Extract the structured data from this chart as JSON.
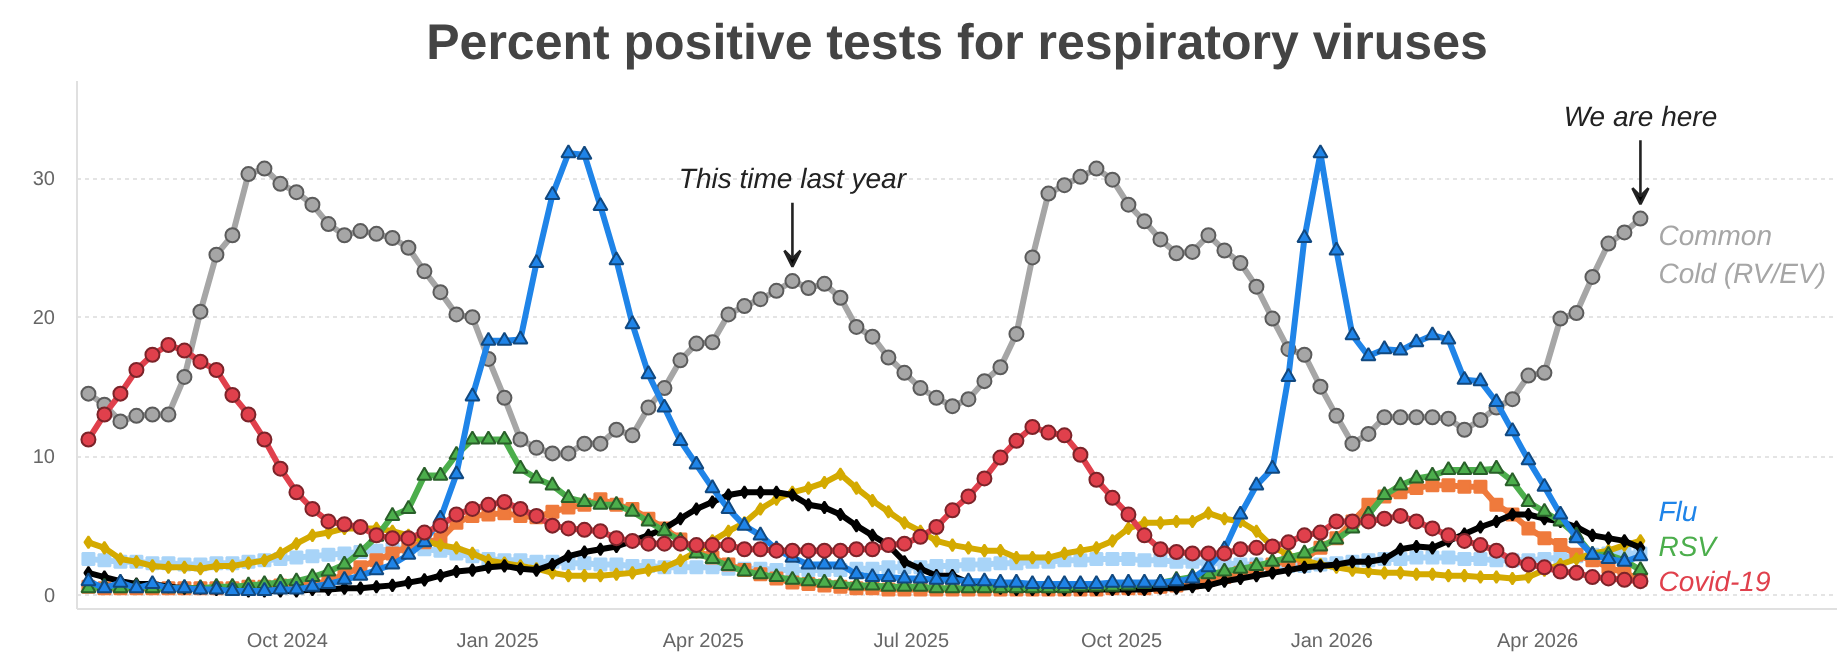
{
  "chart_data": {
    "type": "line",
    "title": "Percent positive tests for respiratory viruses",
    "x": [
      "2024-07-06",
      "2024-07-13",
      "2024-07-20",
      "2024-07-27",
      "2024-08-03",
      "2024-08-10",
      "2024-08-17",
      "2024-08-24",
      "2024-08-31",
      "2024-09-07",
      "2024-09-14",
      "2024-09-21",
      "2024-09-28",
      "2024-10-05",
      "2024-10-12",
      "2024-10-19",
      "2024-10-26",
      "2024-11-02",
      "2024-11-09",
      "2024-11-16",
      "2024-11-23",
      "2024-11-30",
      "2024-12-07",
      "2024-12-14",
      "2024-12-21",
      "2024-12-28",
      "2025-01-04",
      "2025-01-11",
      "2025-01-18",
      "2025-01-25",
      "2025-02-01",
      "2025-02-08",
      "2025-02-15",
      "2025-02-22",
      "2025-03-01",
      "2025-03-08",
      "2025-03-15",
      "2025-03-22",
      "2025-03-29",
      "2025-04-05",
      "2025-04-12",
      "2025-04-19",
      "2025-04-26",
      "2025-05-03",
      "2025-05-10",
      "2025-05-17",
      "2025-05-24",
      "2025-05-31",
      "2025-06-07",
      "2025-06-14",
      "2025-06-21",
      "2025-06-28",
      "2025-07-05",
      "2025-07-12",
      "2025-07-19",
      "2025-07-26",
      "2025-08-02",
      "2025-08-09",
      "2025-08-16",
      "2025-08-23",
      "2025-08-30",
      "2025-09-06",
      "2025-09-13",
      "2025-09-20",
      "2025-09-27",
      "2025-10-04",
      "2025-10-11",
      "2025-10-18",
      "2025-10-25",
      "2025-11-01",
      "2025-11-08",
      "2025-11-15",
      "2025-11-22",
      "2025-11-29",
      "2025-12-06",
      "2025-12-13",
      "2025-12-20",
      "2025-12-27",
      "2026-01-03",
      "2026-01-10",
      "2026-01-17",
      "2026-01-24",
      "2026-01-31",
      "2026-02-07",
      "2026-02-14",
      "2026-02-21",
      "2026-02-28",
      "2026-03-07",
      "2026-03-14",
      "2026-03-21",
      "2026-03-28",
      "2026-04-04",
      "2026-04-11",
      "2026-04-18",
      "2026-04-25",
      "2026-05-02",
      "2026-05-09",
      "2026-05-16"
    ],
    "series": [
      {
        "color": "#a8d4f8",
        "marker": "square",
        "values": [
          2.6,
          2.5,
          2.4,
          2.4,
          2.3,
          2.3,
          2.2,
          2.2,
          2.3,
          2.3,
          2.4,
          2.5,
          2.6,
          2.7,
          2.8,
          2.9,
          3.0,
          3.1,
          3.2,
          3.3,
          3.4,
          3.3,
          3.2,
          3.0,
          2.8,
          2.6,
          2.5,
          2.5,
          2.4,
          2.4,
          2.3,
          2.3,
          2.2,
          2.2,
          2.1,
          2.1,
          2.0,
          2.0,
          2.0,
          2.0,
          1.9,
          1.9,
          1.9,
          1.8,
          1.8,
          1.8,
          1.8,
          1.8,
          1.9,
          1.9,
          2.0,
          2.0,
          2.0,
          2.1,
          2.1,
          2.2,
          2.2,
          2.3,
          2.3,
          2.4,
          2.4,
          2.5,
          2.5,
          2.6,
          2.6,
          2.6,
          2.5,
          2.5,
          2.4,
          2.4,
          2.3,
          2.3,
          2.2,
          2.2,
          2.1,
          2.1,
          2.1,
          2.2,
          2.3,
          2.4,
          2.5,
          2.6,
          2.6,
          2.7,
          2.7,
          2.7,
          2.6,
          2.6,
          2.5,
          2.5,
          2.5,
          2.6,
          2.7,
          2.8,
          2.9,
          3.0,
          3.0,
          3.0
        ]
      },
      {
        "color": "#ef7a3c",
        "marker": "square",
        "values": [
          0.6,
          0.5,
          0.5,
          0.5,
          0.5,
          0.5,
          0.5,
          0.5,
          0.5,
          0.5,
          0.6,
          0.6,
          0.7,
          0.7,
          0.8,
          1.0,
          1.5,
          2.0,
          2.5,
          3.0,
          3.5,
          3.8,
          4.0,
          5.2,
          5.7,
          5.8,
          5.9,
          5.7,
          5.6,
          6.0,
          6.3,
          6.5,
          6.9,
          6.5,
          6.2,
          5.5,
          4.8,
          4.0,
          3.2,
          2.7,
          2.2,
          1.8,
          1.5,
          1.2,
          0.9,
          0.8,
          0.7,
          0.6,
          0.5,
          0.5,
          0.4,
          0.4,
          0.4,
          0.4,
          0.4,
          0.4,
          0.4,
          0.4,
          0.4,
          0.4,
          0.4,
          0.4,
          0.4,
          0.4,
          0.5,
          0.5,
          0.5,
          0.6,
          0.7,
          0.9,
          1.1,
          1.3,
          1.6,
          1.9,
          2.2,
          2.5,
          2.6,
          3.4,
          4.1,
          5.3,
          6.5,
          7.1,
          7.4,
          7.7,
          7.9,
          7.9,
          7.8,
          7.8,
          6.5,
          5.8,
          4.8,
          4.1,
          3.6,
          2.9,
          2.5,
          2.0,
          1.6,
          1.1
        ]
      },
      {
        "color": "#d4aa00",
        "marker": "diamond",
        "values": [
          3.8,
          3.4,
          2.6,
          2.4,
          2.1,
          2.0,
          2.0,
          1.9,
          2.1,
          2.1,
          2.3,
          2.5,
          3.0,
          3.7,
          4.3,
          4.5,
          4.8,
          4.8,
          4.8,
          4.6,
          4.3,
          3.9,
          3.6,
          3.4,
          3.0,
          2.5,
          2.3,
          2.1,
          1.9,
          1.6,
          1.4,
          1.4,
          1.4,
          1.5,
          1.6,
          1.8,
          2.0,
          2.5,
          3.1,
          3.9,
          4.6,
          5.2,
          6.2,
          6.9,
          7.4,
          7.7,
          8.1,
          8.7,
          7.7,
          6.8,
          6.0,
          5.2,
          4.6,
          3.9,
          3.6,
          3.4,
          3.2,
          3.2,
          2.7,
          2.7,
          2.7,
          3.0,
          3.2,
          3.4,
          3.9,
          4.8,
          5.2,
          5.2,
          5.3,
          5.3,
          5.9,
          5.5,
          5.3,
          4.6,
          3.5,
          2.9,
          2.5,
          2.2,
          2.0,
          1.8,
          1.7,
          1.6,
          1.6,
          1.5,
          1.5,
          1.4,
          1.4,
          1.3,
          1.3,
          1.2,
          1.3,
          1.8,
          2.2,
          2.6,
          3.0,
          3.2,
          3.6,
          3.9
        ]
      },
      {
        "color": "#000000",
        "marker": "diamond",
        "values": [
          1.6,
          1.3,
          1.0,
          0.8,
          0.8,
          0.6,
          0.5,
          0.5,
          0.4,
          0.4,
          0.3,
          0.3,
          0.3,
          0.3,
          0.4,
          0.4,
          0.5,
          0.5,
          0.6,
          0.7,
          0.9,
          1.1,
          1.4,
          1.7,
          1.8,
          2.0,
          2.1,
          1.9,
          1.8,
          2.2,
          2.8,
          3.1,
          3.3,
          3.5,
          3.9,
          4.3,
          4.8,
          5.5,
          6.2,
          6.7,
          7.2,
          7.4,
          7.4,
          7.4,
          7.2,
          6.5,
          6.3,
          5.8,
          5.0,
          4.3,
          3.6,
          2.4,
          1.9,
          1.4,
          1.4,
          0.9,
          0.7,
          0.5,
          0.4,
          0.4,
          0.4,
          0.4,
          0.4,
          0.4,
          0.4,
          0.4,
          0.4,
          0.5,
          0.5,
          0.6,
          0.7,
          1.0,
          1.2,
          1.4,
          1.6,
          1.8,
          2.0,
          2.1,
          2.2,
          2.4,
          2.4,
          2.6,
          3.3,
          3.5,
          3.4,
          3.9,
          4.4,
          4.9,
          5.3,
          5.8,
          5.8,
          5.5,
          5.3,
          4.9,
          4.3,
          4.1,
          3.9,
          3.4
        ]
      },
      {
        "name": "RSV",
        "color": "#4cae4c",
        "marker": "triangle",
        "values": [
          0.5,
          0.6,
          0.5,
          0.6,
          0.5,
          0.5,
          0.5,
          0.5,
          0.6,
          0.6,
          0.7,
          0.8,
          0.9,
          1.0,
          1.3,
          1.7,
          2.2,
          3.1,
          4.2,
          5.7,
          6.2,
          8.6,
          8.6,
          10.1,
          11.2,
          11.2,
          11.2,
          9.1,
          8.4,
          7.9,
          7.0,
          6.7,
          6.5,
          6.5,
          6.0,
          5.3,
          4.6,
          3.9,
          3.0,
          2.6,
          2.1,
          1.7,
          1.5,
          1.3,
          1.1,
          1.0,
          0.9,
          0.8,
          0.7,
          0.7,
          0.6,
          0.6,
          0.6,
          0.5,
          0.5,
          0.5,
          0.5,
          0.5,
          0.5,
          0.5,
          0.5,
          0.5,
          0.6,
          0.6,
          0.6,
          0.7,
          0.8,
          0.9,
          1.1,
          1.3,
          1.5,
          1.7,
          1.9,
          2.1,
          2.4,
          2.7,
          3.0,
          3.5,
          4.0,
          4.8,
          5.8,
          7.2,
          7.9,
          8.4,
          8.6,
          9.0,
          9.0,
          9.0,
          9.1,
          8.2,
          6.7,
          6.0,
          5.3,
          4.3,
          2.9,
          2.9,
          2.5,
          1.8
        ]
      },
      {
        "name": "Common Cold (RV/EV)",
        "color": "#a6a6a6",
        "marker": "circle",
        "values": [
          14.5,
          13.7,
          12.5,
          12.9,
          13.0,
          13.0,
          15.7,
          20.4,
          24.5,
          25.9,
          30.3,
          30.7,
          29.6,
          29.0,
          28.1,
          26.7,
          25.9,
          26.2,
          26.0,
          25.7,
          25.0,
          23.3,
          21.8,
          20.2,
          20.0,
          17.0,
          14.2,
          11.2,
          10.6,
          10.2,
          10.2,
          10.9,
          10.9,
          11.9,
          11.5,
          13.5,
          14.9,
          16.9,
          18.1,
          18.2,
          20.2,
          20.8,
          21.3,
          21.9,
          22.6,
          22.1,
          22.4,
          21.4,
          19.3,
          18.6,
          17.1,
          16.0,
          14.9,
          14.2,
          13.6,
          14.1,
          15.4,
          16.4,
          18.8,
          24.3,
          28.9,
          29.5,
          30.1,
          30.7,
          29.9,
          28.1,
          26.9,
          25.6,
          24.6,
          24.7,
          25.9,
          24.8,
          23.9,
          22.2,
          19.9,
          17.7,
          17.3,
          15.0,
          12.9,
          10.9,
          11.6,
          12.8,
          12.8,
          12.8,
          12.8,
          12.7,
          11.9,
          12.6,
          13.5,
          14.1,
          15.8,
          16.0,
          19.9,
          20.3,
          22.9,
          25.3,
          26.1,
          27.1
        ]
      },
      {
        "name": "Flu",
        "color": "#1f84e8",
        "marker": "triangle",
        "values": [
          1.0,
          0.5,
          0.9,
          0.5,
          0.8,
          0.5,
          0.5,
          0.4,
          0.4,
          0.3,
          0.3,
          0.3,
          0.4,
          0.4,
          0.6,
          0.8,
          1.1,
          1.4,
          1.8,
          2.2,
          2.9,
          3.8,
          5.5,
          8.7,
          14.3,
          18.3,
          18.3,
          18.4,
          23.9,
          28.8,
          31.8,
          31.7,
          28.0,
          24.1,
          19.5,
          15.9,
          13.5,
          11.1,
          9.4,
          7.7,
          6.2,
          5.0,
          4.3,
          3.3,
          2.7,
          2.2,
          2.2,
          2.2,
          1.5,
          1.3,
          1.3,
          1.2,
          1.2,
          1.1,
          1.1,
          1.0,
          1.0,
          0.9,
          0.9,
          0.8,
          0.8,
          0.8,
          0.8,
          0.8,
          0.9,
          0.9,
          0.9,
          0.9,
          1.0,
          1.2,
          2.0,
          3.3,
          5.8,
          7.9,
          9.1,
          15.7,
          25.7,
          31.8,
          24.8,
          18.7,
          17.2,
          17.7,
          17.6,
          18.2,
          18.7,
          18.4,
          15.5,
          15.4,
          13.9,
          11.8,
          9.7,
          7.8,
          5.8,
          4.1,
          2.9,
          2.6,
          2.4,
          2.8
        ]
      },
      {
        "name": "Covid-19",
        "color": "#e0404c",
        "marker": "circle",
        "values": [
          11.2,
          13.0,
          14.5,
          16.2,
          17.3,
          18.0,
          17.6,
          16.8,
          16.2,
          14.4,
          13.0,
          11.2,
          9.1,
          7.4,
          6.2,
          5.3,
          5.1,
          4.9,
          4.3,
          4.1,
          4.1,
          4.5,
          5.0,
          5.8,
          6.2,
          6.5,
          6.7,
          6.2,
          5.7,
          5.0,
          4.8,
          4.7,
          4.6,
          4.1,
          3.9,
          3.7,
          3.7,
          3.7,
          3.6,
          3.6,
          3.6,
          3.3,
          3.3,
          3.2,
          3.2,
          3.2,
          3.2,
          3.2,
          3.3,
          3.3,
          3.6,
          3.7,
          4.2,
          4.9,
          6.1,
          7.1,
          8.4,
          9.9,
          11.1,
          12.1,
          11.7,
          11.5,
          10.1,
          8.3,
          7.0,
          5.8,
          4.3,
          3.3,
          3.1,
          3.0,
          3.0,
          3.0,
          3.3,
          3.4,
          3.5,
          3.8,
          4.3,
          4.5,
          5.3,
          5.3,
          5.3,
          5.5,
          5.7,
          5.3,
          4.8,
          4.3,
          3.9,
          3.6,
          3.2,
          2.5,
          2.2,
          2.0,
          1.7,
          1.6,
          1.3,
          1.2,
          1.1,
          1.0
        ]
      }
    ],
    "xlim": [
      "2024-07-01",
      "2026-08-10"
    ],
    "xticks": [
      {
        "value": "2024-10-01",
        "label": "Oct 2024"
      },
      {
        "value": "2025-01-01",
        "label": "Jan 2025"
      },
      {
        "value": "2025-04-01",
        "label": "Apr 2025"
      },
      {
        "value": "2025-07-01",
        "label": "Jul 2025"
      },
      {
        "value": "2025-10-01",
        "label": "Oct 2025"
      },
      {
        "value": "2026-01-01",
        "label": "Jan 2026"
      },
      {
        "value": "2026-04-01",
        "label": "Apr 2026"
      }
    ],
    "ylim": [
      -1,
      37
    ],
    "yticks": [
      0,
      10,
      20,
      30
    ],
    "grid": "y",
    "legend": false,
    "annotations": [
      {
        "text": "This time last year",
        "x": "2025-05-10",
        "y": 22.6
      },
      {
        "text": "We are here",
        "x": "2026-05-16",
        "y": 27.1
      }
    ]
  }
}
